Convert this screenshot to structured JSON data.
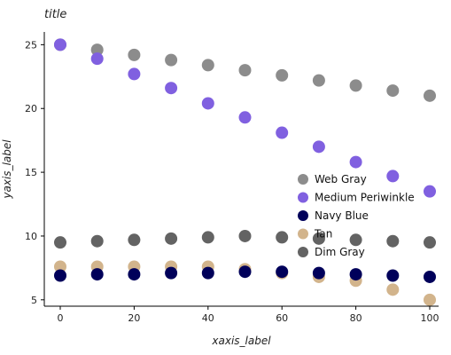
{
  "chart_data": {
    "type": "scatter",
    "title": "title",
    "xlabel": "xaxis_label",
    "ylabel": "yaxis_label",
    "xlim": [
      0,
      100
    ],
    "ylim": [
      4.5,
      26
    ],
    "x_ticks": [
      0,
      20,
      40,
      60,
      80,
      100
    ],
    "y_ticks": [
      5,
      10,
      15,
      20,
      25
    ],
    "x_tick_labels": [
      "0",
      "20",
      "40",
      "60",
      "80",
      "100"
    ],
    "y_tick_labels": [
      "5",
      "10",
      "15",
      "20",
      "25"
    ],
    "grid": false,
    "legend_position": "right",
    "x": [
      0,
      10,
      20,
      30,
      40,
      50,
      60,
      70,
      80,
      90,
      100
    ],
    "series": [
      {
        "name": "Web Gray",
        "color": "#8c8c8c",
        "values": [
          25.0,
          24.6,
          24.2,
          23.8,
          23.4,
          23.0,
          22.6,
          22.2,
          21.8,
          21.4,
          21.0
        ]
      },
      {
        "name": "Medium Periwinkle",
        "color": "#8060e0",
        "values": [
          25.0,
          23.9,
          22.7,
          21.6,
          20.4,
          19.3,
          18.1,
          17.0,
          15.8,
          14.7,
          13.5
        ]
      },
      {
        "name": "Navy Blue",
        "color": "#00005a",
        "values": [
          6.9,
          7.0,
          7.0,
          7.1,
          7.1,
          7.2,
          7.2,
          7.1,
          7.0,
          6.9,
          6.8
        ]
      },
      {
        "name": "Tan",
        "color": "#d2b48c",
        "values": [
          7.6,
          7.6,
          7.6,
          7.6,
          7.6,
          7.4,
          7.1,
          6.8,
          6.5,
          5.8,
          5.0
        ]
      },
      {
        "name": "Dim Gray",
        "color": "#636363",
        "values": [
          9.5,
          9.6,
          9.7,
          9.8,
          9.9,
          10.0,
          9.9,
          9.8,
          9.7,
          9.6,
          9.5
        ]
      }
    ]
  }
}
